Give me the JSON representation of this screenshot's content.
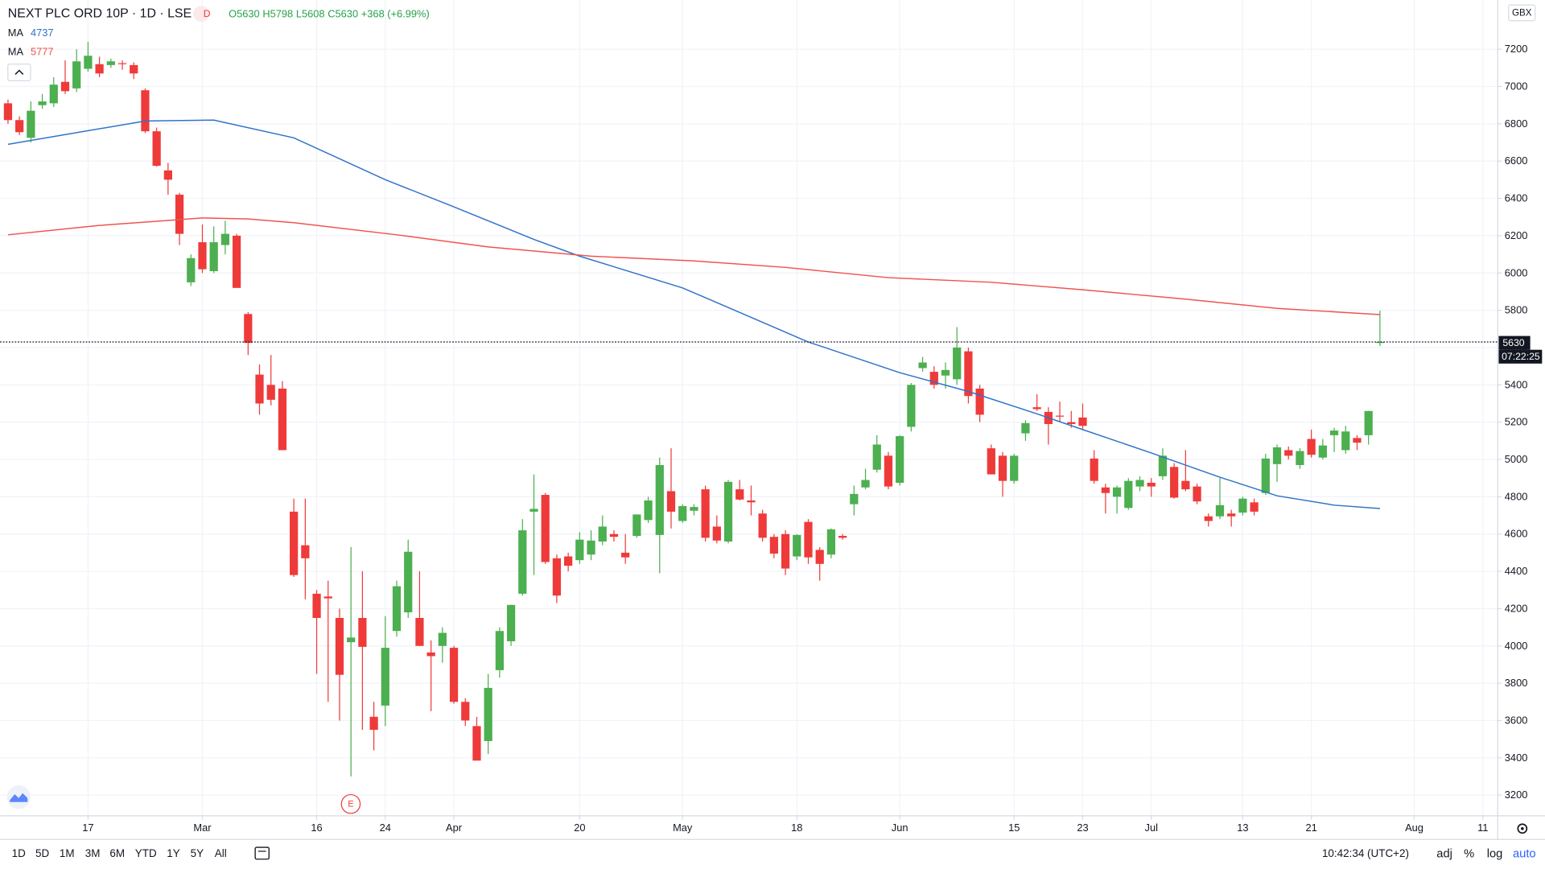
{
  "header": {
    "title": "NEXT PLC ORD 10P · 1D · LSE",
    "interval_badge": "D",
    "ohlc": [
      "O5630",
      "H5798",
      "L5608",
      "C5630"
    ],
    "change": "+368 (+6.99%)"
  },
  "indicators": [
    {
      "label": "MA",
      "value": "4737",
      "color": "#2f73c9"
    },
    {
      "label": "MA",
      "value": "5777",
      "color": "#ef5350"
    }
  ],
  "price_axis": {
    "currency": "GBX",
    "last_price": "5630",
    "countdown": "07:22:25"
  },
  "event_marker": "E",
  "toolbar": {
    "ranges": [
      "1D",
      "5D",
      "1M",
      "3M",
      "6M",
      "YTD",
      "1Y",
      "5Y",
      "All"
    ],
    "time": "10:42:34 (UTC+2)",
    "options": [
      "adj",
      "%",
      "log",
      "auto"
    ]
  },
  "chart_data": {
    "type": "candlestick",
    "up_color": "#4caf50",
    "down_color": "#ef3a3a",
    "grid": true,
    "xlim": [
      -0.7,
      130.3
    ],
    "ylim": [
      3089,
      7464
    ],
    "yticks": [
      3200,
      3400,
      3600,
      3800,
      4000,
      4200,
      4400,
      4600,
      4800,
      5000,
      5200,
      5400,
      5600,
      5800,
      6000,
      6200,
      6400,
      6600,
      6800,
      7000,
      7200
    ],
    "xticks": [
      {
        "value": 7,
        "label": "17"
      },
      {
        "value": 17,
        "label": "Mar"
      },
      {
        "value": 27,
        "label": "16"
      },
      {
        "value": 33,
        "label": "24"
      },
      {
        "value": 39,
        "label": "Apr"
      },
      {
        "value": 50,
        "label": "20"
      },
      {
        "value": 59,
        "label": "May"
      },
      {
        "value": 69,
        "label": "18"
      },
      {
        "value": 78,
        "label": "Jun"
      },
      {
        "value": 88,
        "label": "15"
      },
      {
        "value": 94,
        "label": "23"
      },
      {
        "value": 100,
        "label": "Jul"
      },
      {
        "value": 108,
        "label": "13"
      },
      {
        "value": 114,
        "label": "21"
      },
      {
        "value": 123,
        "label": "Aug"
      },
      {
        "value": 129,
        "label": "11"
      }
    ],
    "last_price": 5630,
    "candles": [
      [
        6910,
        6930,
        6800,
        6820
      ],
      [
        6820,
        6840,
        6740,
        6755
      ],
      [
        6725,
        6920,
        6700,
        6870
      ],
      [
        6900,
        6960,
        6880,
        6920
      ],
      [
        6910,
        7050,
        6890,
        7010
      ],
      [
        7025,
        7140,
        6960,
        6975
      ],
      [
        6990,
        7200,
        6970,
        7135
      ],
      [
        7095,
        7240,
        7080,
        7165
      ],
      [
        7120,
        7160,
        7050,
        7070
      ],
      [
        7115,
        7150,
        7100,
        7135
      ],
      [
        7125,
        7140,
        7090,
        7120
      ],
      [
        7115,
        7130,
        7040,
        7070
      ],
      [
        6980,
        6990,
        6750,
        6760
      ],
      [
        6760,
        6780,
        6570,
        6575
      ],
      [
        6550,
        6590,
        6420,
        6500
      ],
      [
        6420,
        6430,
        6150,
        6210
      ],
      [
        5950,
        6100,
        5930,
        6080
      ],
      [
        6165,
        6260,
        6000,
        6020
      ],
      [
        6010,
        6250,
        6000,
        6165
      ],
      [
        6150,
        6280,
        6100,
        6210
      ],
      [
        6200,
        6210,
        5920,
        5920
      ],
      [
        5780,
        5790,
        5560,
        5625
      ],
      [
        5455,
        5510,
        5240,
        5300
      ],
      [
        5400,
        5560,
        5290,
        5320
      ],
      [
        5380,
        5420,
        5050,
        5050
      ],
      [
        4720,
        4790,
        4370,
        4380
      ],
      [
        4540,
        4790,
        4250,
        4470
      ],
      [
        4280,
        4300,
        3850,
        4150
      ],
      [
        4265,
        4350,
        3700,
        4255
      ],
      [
        4150,
        4200,
        3600,
        3845
      ],
      [
        4020,
        4530,
        3300,
        4045
      ],
      [
        4150,
        4400,
        3550,
        3995
      ],
      [
        3620,
        3700,
        3440,
        3550
      ],
      [
        3680,
        4160,
        3570,
        3990
      ],
      [
        4080,
        4350,
        4050,
        4320
      ],
      [
        4180,
        4570,
        4150,
        4505
      ],
      [
        4150,
        4400,
        4000,
        4000
      ],
      [
        3965,
        4030,
        3650,
        3945
      ],
      [
        4000,
        4100,
        3910,
        4070
      ],
      [
        3990,
        4000,
        3690,
        3700
      ],
      [
        3700,
        3720,
        3570,
        3600
      ],
      [
        3570,
        3620,
        3385,
        3385
      ],
      [
        3490,
        3850,
        3420,
        3775
      ],
      [
        3870,
        4100,
        3830,
        4080
      ],
      [
        4025,
        4220,
        4000,
        4220
      ],
      [
        4280,
        4680,
        4270,
        4620
      ],
      [
        4720,
        4920,
        4380,
        4735
      ],
      [
        4810,
        4820,
        4440,
        4450
      ],
      [
        4470,
        4490,
        4230,
        4270
      ],
      [
        4480,
        4500,
        4400,
        4430
      ],
      [
        4460,
        4610,
        4440,
        4570
      ],
      [
        4490,
        4620,
        4460,
        4565
      ],
      [
        4560,
        4700,
        4540,
        4640
      ],
      [
        4600,
        4620,
        4560,
        4585
      ],
      [
        4500,
        4600,
        4440,
        4475
      ],
      [
        4590,
        4705,
        4580,
        4705
      ],
      [
        4675,
        4800,
        4660,
        4780
      ],
      [
        4595,
        5010,
        4390,
        4970
      ],
      [
        4830,
        5060,
        4630,
        4720
      ],
      [
        4670,
        4760,
        4660,
        4750
      ],
      [
        4725,
        4760,
        4700,
        4745
      ],
      [
        4840,
        4860,
        4560,
        4580
      ],
      [
        4640,
        4700,
        4550,
        4565
      ],
      [
        4560,
        4890,
        4550,
        4880
      ],
      [
        4840,
        4890,
        4780,
        4785
      ],
      [
        4780,
        4860,
        4700,
        4770
      ],
      [
        4710,
        4730,
        4560,
        4580
      ],
      [
        4585,
        4600,
        4470,
        4495
      ],
      [
        4600,
        4620,
        4380,
        4415
      ],
      [
        4480,
        4600,
        4460,
        4595
      ],
      [
        4665,
        4680,
        4440,
        4475
      ],
      [
        4515,
        4530,
        4350,
        4440
      ],
      [
        4490,
        4630,
        4470,
        4625
      ],
      [
        4590,
        4600,
        4570,
        4580
      ],
      [
        4760,
        4860,
        4700,
        4815
      ],
      [
        4850,
        4950,
        4840,
        4890
      ],
      [
        4945,
        5130,
        4930,
        5080
      ],
      [
        5020,
        5040,
        4840,
        4855
      ],
      [
        4875,
        5130,
        4860,
        5125
      ],
      [
        5175,
        5410,
        5150,
        5400
      ],
      [
        5490,
        5550,
        5470,
        5520
      ],
      [
        5470,
        5500,
        5380,
        5400
      ],
      [
        5450,
        5520,
        5380,
        5480
      ],
      [
        5430,
        5710,
        5400,
        5600
      ],
      [
        5580,
        5600,
        5300,
        5340
      ],
      [
        5380,
        5400,
        5200,
        5240
      ],
      [
        5060,
        5080,
        4920,
        4920
      ],
      [
        5020,
        5040,
        4800,
        4885
      ],
      [
        4885,
        5030,
        4870,
        5020
      ],
      [
        5140,
        5210,
        5100,
        5195
      ],
      [
        5280,
        5350,
        5260,
        5270
      ],
      [
        5255,
        5280,
        5080,
        5190
      ],
      [
        5235,
        5310,
        5200,
        5230
      ],
      [
        5200,
        5260,
        5170,
        5190
      ],
      [
        5225,
        5300,
        5160,
        5180
      ],
      [
        5005,
        5050,
        4870,
        4885
      ],
      [
        4850,
        4870,
        4710,
        4820
      ],
      [
        4800,
        4860,
        4710,
        4850
      ],
      [
        4740,
        4900,
        4730,
        4885
      ],
      [
        4855,
        4910,
        4830,
        4890
      ],
      [
        4875,
        4900,
        4800,
        4855
      ],
      [
        4910,
        5060,
        4890,
        5020
      ],
      [
        4960,
        4980,
        4790,
        4795
      ],
      [
        4885,
        5050,
        4830,
        4840
      ],
      [
        4855,
        4870,
        4760,
        4775
      ],
      [
        4695,
        4710,
        4640,
        4670
      ],
      [
        4695,
        4900,
        4680,
        4755
      ],
      [
        4710,
        4730,
        4640,
        4695
      ],
      [
        4715,
        4800,
        4700,
        4790
      ],
      [
        4770,
        4790,
        4700,
        4720
      ],
      [
        4820,
        5030,
        4810,
        5005
      ],
      [
        4975,
        5080,
        4880,
        5065
      ],
      [
        5050,
        5070,
        5000,
        5020
      ],
      [
        4970,
        5060,
        4950,
        5045
      ],
      [
        5110,
        5160,
        5010,
        5025
      ],
      [
        5010,
        5110,
        5000,
        5075
      ],
      [
        5130,
        5170,
        5040,
        5155
      ],
      [
        5050,
        5180,
        5030,
        5150
      ],
      [
        5115,
        5130,
        5050,
        5090
      ],
      [
        5130,
        5260,
        5080,
        5260
      ],
      [
        5630,
        5798,
        5608,
        5630
      ]
    ],
    "series": [
      {
        "color": "#2f73c9",
        "x": [
          0,
          12,
          18,
          25,
          33,
          39,
          46,
          50,
          59,
          63,
          70,
          78,
          84,
          90,
          94,
          100,
          106,
          111,
          116,
          120
        ],
        "values": [
          6690,
          6815,
          6820,
          6725,
          6500,
          6355,
          6180,
          6090,
          5920,
          5815,
          5630,
          5465,
          5365,
          5245,
          5160,
          5035,
          4905,
          4805,
          4755,
          4737
        ]
      },
      {
        "color": "#ef5350",
        "x": [
          0,
          8,
          17,
          21,
          25,
          34,
          42,
          51,
          60,
          68,
          77,
          86,
          94,
          103,
          111,
          120
        ],
        "values": [
          6205,
          6255,
          6295,
          6290,
          6270,
          6205,
          6140,
          6090,
          6065,
          6030,
          5975,
          5950,
          5910,
          5860,
          5810,
          5777
        ]
      }
    ]
  }
}
